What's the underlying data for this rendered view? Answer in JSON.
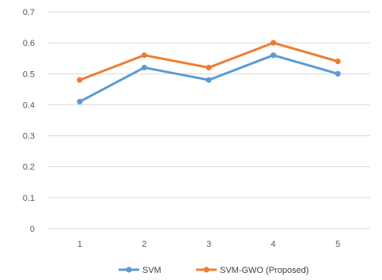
{
  "chart_data": {
    "type": "line",
    "x": [
      1,
      2,
      3,
      4,
      5
    ],
    "categories": [
      "1",
      "2",
      "3",
      "4",
      "5"
    ],
    "series": [
      {
        "name": "SVM",
        "values": [
          0.41,
          0.52,
          0.48,
          0.56,
          0.5
        ],
        "color": "#5b9bd5"
      },
      {
        "name": "SVM-GWO (Proposed)",
        "values": [
          0.48,
          0.56,
          0.52,
          0.6,
          0.54
        ],
        "color": "#ed7d31"
      }
    ],
    "yticks": [
      "0",
      "0.1",
      "0.2",
      "0.3",
      "0.4",
      "0.5",
      "0.6",
      "0.7"
    ],
    "ylim": [
      0,
      0.7
    ],
    "grid": true,
    "legend_position": "bottom",
    "title": "",
    "xlabel": "",
    "ylabel": ""
  }
}
